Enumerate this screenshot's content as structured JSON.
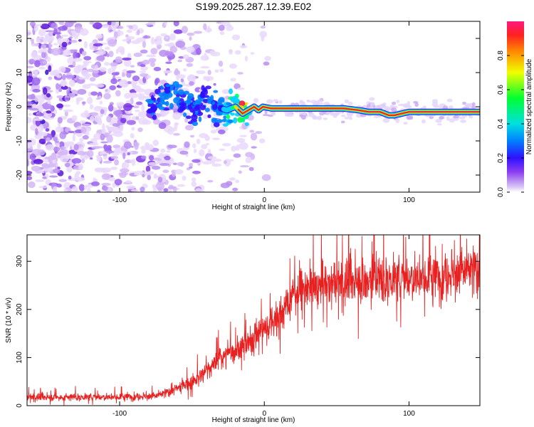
{
  "title": "S199.2025.287.12.39.E02",
  "colors": {
    "background": "#ffffff",
    "axis": "#000000",
    "snr_line": "#e82020",
    "ridge_core": "#e8203a",
    "ridge_mid": "#ffd400",
    "ridge_outer": "#00d0ff",
    "noise_dark": "#5a14d8",
    "noise_light": "#e9d8fb"
  },
  "chart_data": [
    {
      "type": "heatmap",
      "title": "S199.2025.287.12.39.E02",
      "xlabel": "Height of straight line (km)",
      "ylabel": "Frequency (Hz)",
      "xlim": [
        -164,
        149
      ],
      "ylim": [
        -25,
        25
      ],
      "xticks": [
        -100,
        0,
        100
      ],
      "yticks": [
        -20,
        -10,
        0,
        10,
        20
      ],
      "grid": false,
      "ridge": {
        "description_x": [
          -78,
          -70,
          -64,
          -56,
          -48,
          -40,
          -33,
          -26,
          -20,
          -15,
          -11,
          -7,
          -4,
          -1,
          5,
          20,
          40,
          55,
          65,
          72,
          80,
          86,
          90,
          100,
          115,
          130,
          147
        ],
        "frequency_hz": [
          -1,
          3,
          5,
          1,
          -1,
          3,
          0,
          -1,
          0,
          -2,
          -1,
          0,
          -1,
          0,
          -0.5,
          -0.5,
          -0.5,
          -0.5,
          -1,
          -1.5,
          -1.5,
          -2.5,
          -2.5,
          -1.5,
          -1.5,
          -1.5,
          -1.5
        ],
        "normalized_amplitude": [
          0.25,
          0.3,
          0.35,
          0.3,
          0.3,
          0.3,
          0.35,
          0.45,
          0.7,
          0.7,
          0.7,
          0.75,
          0.9,
          0.85,
          0.9,
          0.95,
          0.95,
          0.9,
          0.6,
          0.85,
          0.7,
          0.8,
          0.6,
          0.95,
          0.95,
          0.95,
          0.95
        ]
      }
    },
    {
      "type": "colorbar",
      "label": "Normalized spectral amplitude",
      "range": [
        0.0,
        1.0
      ],
      "ticks": [
        "0.0",
        "0.2",
        "0.4",
        "0.6",
        "0.8"
      ],
      "tick_values": [
        0.0,
        0.2,
        0.4,
        0.6,
        0.8
      ]
    },
    {
      "type": "line",
      "title": "",
      "xlabel": "Height of straight line (km)",
      "ylabel": "SNR (10 * v/v)",
      "xlim": [
        -164,
        149
      ],
      "ylim": [
        0,
        355
      ],
      "xticks": [
        -100,
        0,
        100
      ],
      "yticks": [
        0,
        100,
        200,
        300
      ],
      "grid": false,
      "series": [
        {
          "name": "SNR",
          "color": "#e82020",
          "x": [
            -164,
            -150,
            -130,
            -110,
            -90,
            -75,
            -65,
            -58,
            -50,
            -45,
            -40,
            -35,
            -30,
            -25,
            -20,
            -15,
            -10,
            -5,
            0,
            5,
            10,
            15,
            20,
            25,
            30,
            40,
            50,
            60,
            70,
            80,
            90,
            100,
            110,
            120,
            130,
            140,
            149
          ],
          "y": [
            18,
            17,
            18,
            18,
            19,
            20,
            30,
            40,
            50,
            60,
            75,
            85,
            105,
            105,
            115,
            125,
            130,
            150,
            160,
            175,
            190,
            205,
            230,
            245,
            245,
            250,
            255,
            255,
            260,
            265,
            265,
            265,
            270,
            270,
            275,
            280,
            285
          ]
        }
      ]
    }
  ]
}
